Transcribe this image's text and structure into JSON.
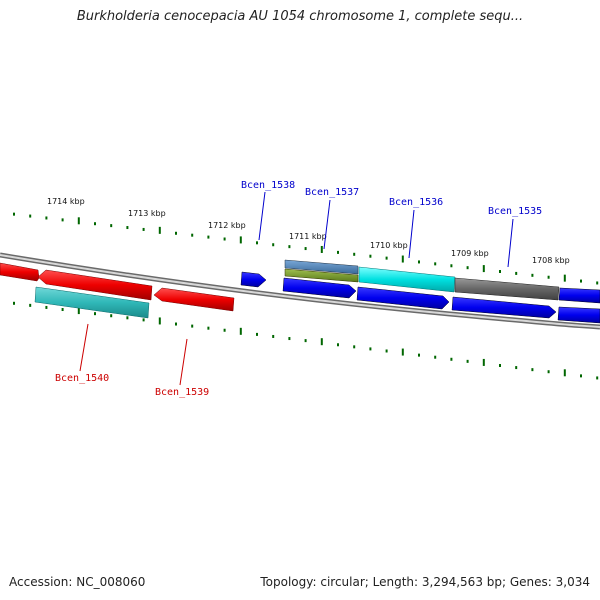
{
  "title": "Burkholderia cenocepacia AU 1054 chromosome 1, complete sequ...",
  "footer": {
    "accession": "Accession: NC_008060",
    "summary": "Topology: circular; Length: 3,294,563 bp; Genes: 3,034"
  },
  "scale": {
    "tick_labels": [
      "1714 kbp",
      "1713 kbp",
      "1712 kbp",
      "1711 kbp",
      "1710 kbp",
      "1709 kbp",
      "1708 kbp"
    ]
  },
  "genes": {
    "forward": [
      {
        "label": "Bcen_1538",
        "color": "#0000dd"
      },
      {
        "label": "Bcen_1537",
        "color": "#0000dd"
      },
      {
        "label": "Bcen_1536",
        "color": "#0000dd"
      },
      {
        "label": "Bcen_1535",
        "color": "#0000dd"
      }
    ],
    "reverse": [
      {
        "label": "Bcen_1540",
        "color": "#dd0000"
      },
      {
        "label": "Bcen_1539",
        "color": "#dd0000"
      }
    ]
  },
  "colors": {
    "forward_strand": "#0000ee",
    "reverse_strand": "#ee0000",
    "cds_cyan": "#00dddd",
    "cds_teal": "#33bbbb",
    "cds_grey": "#666666",
    "cds_olive": "#6b8e23",
    "cds_steel": "#4682b4",
    "tick_green": "#006600",
    "backbone": "#888888"
  }
}
